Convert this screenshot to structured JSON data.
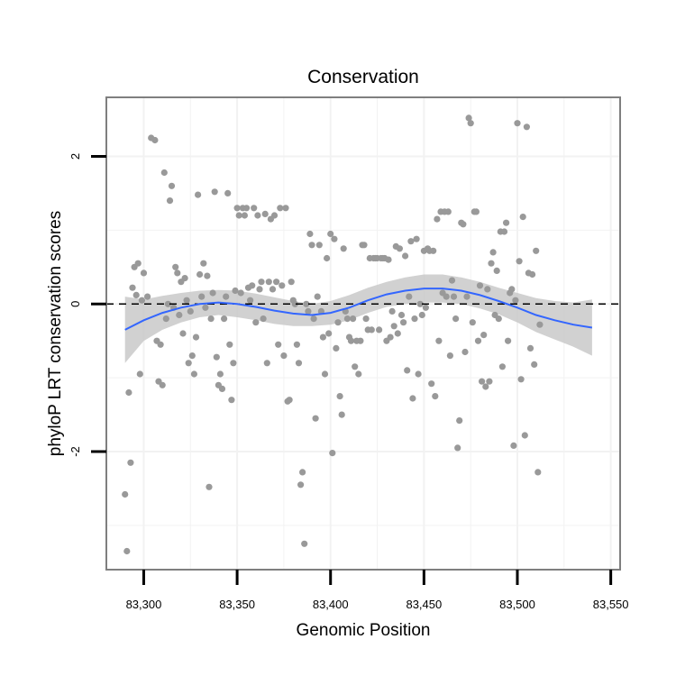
{
  "chart_data": {
    "type": "scatter",
    "title": "Conservation",
    "xlabel": "Genomic Position",
    "ylabel": "phyloP LRT conservation scores",
    "xlim": [
      83280,
      83555
    ],
    "ylim": [
      -3.6,
      2.8
    ],
    "x_ticks": [
      83300,
      83350,
      83400,
      83450,
      83500,
      83550
    ],
    "x_tick_labels": [
      "83,300",
      "83,350",
      "83,400",
      "83,450",
      "83,500",
      "83,550"
    ],
    "y_ticks": [
      -2,
      0,
      2
    ],
    "y_tick_labels": [
      "-2",
      "0",
      "2"
    ],
    "grid": true,
    "reference_line": {
      "y": 0,
      "style": "dashed"
    },
    "colors": {
      "points": "#999999",
      "smooth_line": "#3366FF",
      "ribbon": "#c9c9c9",
      "panel_border": "#7f7f7f",
      "grid": "#f2f2f2"
    },
    "series": [
      {
        "kind": "points",
        "points": [
          [
            83290,
            -2.58
          ],
          [
            83291,
            -3.35
          ],
          [
            83292,
            -1.2
          ],
          [
            83293,
            -2.15
          ],
          [
            83294,
            0.22
          ],
          [
            83295,
            0.5
          ],
          [
            83296,
            0.12
          ],
          [
            83297,
            0.55
          ],
          [
            83298,
            -0.95
          ],
          [
            83299,
            0.05
          ],
          [
            83300,
            0.42
          ],
          [
            83302,
            0.1
          ],
          [
            83304,
            2.25
          ],
          [
            83306,
            2.22
          ],
          [
            83307,
            -0.5
          ],
          [
            83308,
            -1.05
          ],
          [
            83309,
            -0.55
          ],
          [
            83310,
            -1.1
          ],
          [
            83311,
            1.78
          ],
          [
            83312,
            -0.2
          ],
          [
            83313,
            0.0
          ],
          [
            83314,
            1.4
          ],
          [
            83315,
            1.6
          ],
          [
            83316,
            -0.05
          ],
          [
            83317,
            0.5
          ],
          [
            83318,
            0.42
          ],
          [
            83319,
            -0.15
          ],
          [
            83320,
            0.3
          ],
          [
            83321,
            -0.4
          ],
          [
            83322,
            0.35
          ],
          [
            83323,
            0.05
          ],
          [
            83324,
            -0.8
          ],
          [
            83325,
            -0.1
          ],
          [
            83326,
            -0.7
          ],
          [
            83327,
            -0.95
          ],
          [
            83328,
            -0.45
          ],
          [
            83329,
            1.48
          ],
          [
            83330,
            0.4
          ],
          [
            83331,
            0.1
          ],
          [
            83332,
            0.55
          ],
          [
            83333,
            -0.05
          ],
          [
            83334,
            0.38
          ],
          [
            83335,
            -2.48
          ],
          [
            83336,
            -0.2
          ],
          [
            83337,
            0.15
          ],
          [
            83338,
            1.52
          ],
          [
            83339,
            -0.72
          ],
          [
            83340,
            -1.1
          ],
          [
            83341,
            -0.95
          ],
          [
            83342,
            -1.15
          ],
          [
            83343,
            -0.2
          ],
          [
            83344,
            0.1
          ],
          [
            83345,
            1.5
          ],
          [
            83346,
            -0.55
          ],
          [
            83347,
            -1.3
          ],
          [
            83348,
            -0.8
          ],
          [
            83349,
            0.18
          ],
          [
            83350,
            1.3
          ],
          [
            83351,
            1.2
          ],
          [
            83352,
            0.15
          ],
          [
            83353,
            1.3
          ],
          [
            83354,
            1.2
          ],
          [
            83355,
            1.3
          ],
          [
            83356,
            0.22
          ],
          [
            83357,
            0.05
          ],
          [
            83358,
            0.25
          ],
          [
            83359,
            1.3
          ],
          [
            83360,
            -0.25
          ],
          [
            83361,
            1.2
          ],
          [
            83362,
            0.2
          ],
          [
            83363,
            0.3
          ],
          [
            83364,
            -0.2
          ],
          [
            83365,
            1.22
          ],
          [
            83366,
            -0.8
          ],
          [
            83367,
            0.3
          ],
          [
            83368,
            1.15
          ],
          [
            83369,
            0.2
          ],
          [
            83370,
            1.2
          ],
          [
            83371,
            0.3
          ],
          [
            83372,
            -0.55
          ],
          [
            83373,
            1.3
          ],
          [
            83374,
            0.25
          ],
          [
            83375,
            -0.7
          ],
          [
            83376,
            1.3
          ],
          [
            83377,
            -1.32
          ],
          [
            83378,
            -1.3
          ],
          [
            83379,
            0.3
          ],
          [
            83380,
            0.05
          ],
          [
            83381,
            0.0
          ],
          [
            83382,
            -0.55
          ],
          [
            83383,
            -0.8
          ],
          [
            83384,
            -2.45
          ],
          [
            83385,
            -2.28
          ],
          [
            83386,
            -3.25
          ],
          [
            83387,
            0.0
          ],
          [
            83388,
            -0.1
          ],
          [
            83389,
            0.95
          ],
          [
            83390,
            0.8
          ],
          [
            83391,
            -0.2
          ],
          [
            83392,
            -1.55
          ],
          [
            83393,
            0.1
          ],
          [
            83394,
            0.8
          ],
          [
            83395,
            -0.1
          ],
          [
            83396,
            -0.45
          ],
          [
            83397,
            -0.95
          ],
          [
            83398,
            0.62
          ],
          [
            83399,
            -0.4
          ],
          [
            83400,
            0.95
          ],
          [
            83401,
            -2.02
          ],
          [
            83402,
            0.88
          ],
          [
            83403,
            -0.6
          ],
          [
            83404,
            -0.25
          ],
          [
            83405,
            -1.25
          ],
          [
            83406,
            -1.5
          ],
          [
            83407,
            0.75
          ],
          [
            83408,
            -0.1
          ],
          [
            83409,
            -0.2
          ],
          [
            83410,
            -0.45
          ],
          [
            83411,
            -0.5
          ],
          [
            83412,
            -0.2
          ],
          [
            83413,
            -0.85
          ],
          [
            83414,
            -0.5
          ],
          [
            83415,
            -0.95
          ],
          [
            83416,
            -0.5
          ],
          [
            83417,
            0.8
          ],
          [
            83418,
            0.8
          ],
          [
            83419,
            -0.2
          ],
          [
            83420,
            -0.35
          ],
          [
            83421,
            0.62
          ],
          [
            83422,
            -0.35
          ],
          [
            83423,
            0.62
          ],
          [
            83424,
            0.62
          ],
          [
            83425,
            0.62
          ],
          [
            83426,
            -0.35
          ],
          [
            83427,
            0.62
          ],
          [
            83428,
            0.62
          ],
          [
            83429,
            0.62
          ],
          [
            83430,
            -0.5
          ],
          [
            83431,
            0.6
          ],
          [
            83432,
            -0.45
          ],
          [
            83433,
            -0.1
          ],
          [
            83434,
            -0.3
          ],
          [
            83435,
            0.78
          ],
          [
            83436,
            -0.4
          ],
          [
            83437,
            0.75
          ],
          [
            83438,
            -0.15
          ],
          [
            83439,
            -0.25
          ],
          [
            83440,
            0.65
          ],
          [
            83441,
            -0.9
          ],
          [
            83442,
            0.1
          ],
          [
            83443,
            0.85
          ],
          [
            83444,
            -1.28
          ],
          [
            83445,
            -0.2
          ],
          [
            83446,
            0.88
          ],
          [
            83447,
            -0.95
          ],
          [
            83448,
            0.0
          ],
          [
            83449,
            -0.15
          ],
          [
            83450,
            0.72
          ],
          [
            83451,
            -0.05
          ],
          [
            83452,
            0.75
          ],
          [
            83453,
            0.72
          ],
          [
            83454,
            -1.08
          ],
          [
            83455,
            0.72
          ],
          [
            83456,
            -1.25
          ],
          [
            83457,
            1.15
          ],
          [
            83458,
            -0.5
          ],
          [
            83459,
            1.25
          ],
          [
            83460,
            0.15
          ],
          [
            83461,
            1.25
          ],
          [
            83462,
            0.1
          ],
          [
            83463,
            1.25
          ],
          [
            83464,
            -0.7
          ],
          [
            83465,
            0.32
          ],
          [
            83466,
            0.1
          ],
          [
            83467,
            -0.2
          ],
          [
            83468,
            -1.95
          ],
          [
            83469,
            -1.58
          ],
          [
            83470,
            1.1
          ],
          [
            83471,
            1.08
          ],
          [
            83472,
            -0.65
          ],
          [
            83473,
            0.1
          ],
          [
            83474,
            2.52
          ],
          [
            83475,
            2.45
          ],
          [
            83476,
            -0.25
          ],
          [
            83477,
            1.25
          ],
          [
            83478,
            1.25
          ],
          [
            83479,
            -0.5
          ],
          [
            83480,
            0.25
          ],
          [
            83481,
            -1.05
          ],
          [
            83482,
            -0.42
          ],
          [
            83483,
            -1.12
          ],
          [
            83484,
            0.2
          ],
          [
            83485,
            -1.05
          ],
          [
            83486,
            0.55
          ],
          [
            83487,
            0.7
          ],
          [
            83488,
            -0.15
          ],
          [
            83489,
            0.45
          ],
          [
            83490,
            -0.2
          ],
          [
            83491,
            0.98
          ],
          [
            83492,
            -0.85
          ],
          [
            83493,
            0.98
          ],
          [
            83494,
            1.1
          ],
          [
            83495,
            -0.5
          ],
          [
            83496,
            0.15
          ],
          [
            83497,
            0.2
          ],
          [
            83498,
            -1.92
          ],
          [
            83499,
            0.05
          ],
          [
            83500,
            2.45
          ],
          [
            83501,
            0.58
          ],
          [
            83502,
            -1.02
          ],
          [
            83503,
            1.18
          ],
          [
            83504,
            -1.78
          ],
          [
            83505,
            2.4
          ],
          [
            83506,
            0.42
          ],
          [
            83507,
            -0.6
          ],
          [
            83508,
            0.4
          ],
          [
            83509,
            -0.82
          ],
          [
            83510,
            0.72
          ],
          [
            83511,
            -2.28
          ],
          [
            83512,
            -0.28
          ]
        ]
      },
      {
        "kind": "smooth",
        "x": [
          83290,
          83300,
          83310,
          83320,
          83330,
          83340,
          83350,
          83360,
          83370,
          83380,
          83390,
          83400,
          83410,
          83420,
          83430,
          83440,
          83450,
          83460,
          83470,
          83480,
          83490,
          83500,
          83510,
          83520,
          83530,
          83540
        ],
        "y": [
          -0.35,
          -0.22,
          -0.12,
          -0.05,
          0.0,
          0.02,
          0.0,
          -0.04,
          -0.09,
          -0.13,
          -0.15,
          -0.12,
          -0.05,
          0.05,
          0.13,
          0.18,
          0.21,
          0.21,
          0.18,
          0.12,
          0.04,
          -0.05,
          -0.15,
          -0.22,
          -0.28,
          -0.32
        ],
        "lower": [
          -0.8,
          -0.5,
          -0.35,
          -0.25,
          -0.18,
          -0.15,
          -0.18,
          -0.22,
          -0.27,
          -0.3,
          -0.3,
          -0.28,
          -0.22,
          -0.12,
          -0.04,
          0.0,
          0.02,
          0.02,
          0.0,
          -0.06,
          -0.14,
          -0.25,
          -0.38,
          -0.48,
          -0.58,
          -0.7
        ],
        "upper": [
          0.1,
          0.06,
          0.11,
          0.15,
          0.18,
          0.19,
          0.18,
          0.14,
          0.09,
          0.04,
          0.0,
          0.04,
          0.12,
          0.22,
          0.3,
          0.36,
          0.4,
          0.4,
          0.36,
          0.3,
          0.22,
          0.15,
          0.08,
          0.04,
          0.02,
          0.06
        ]
      }
    ]
  }
}
